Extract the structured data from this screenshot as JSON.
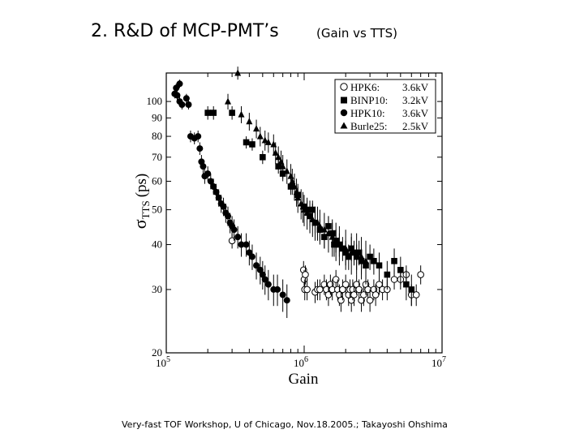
{
  "slide": {
    "title": "2. R&D of MCP-PMT’s",
    "subtitle": "(Gain vs TTS)",
    "footer": "Very-fast TOF Workshop,  U of Chicago,    Nov.18.2005.;  Takayoshi Ohshima"
  },
  "chart_data": {
    "type": "scatter",
    "title": "",
    "xlabel": "Gain",
    "ylabel_symbol": "σ",
    "ylabel_sub": "TTS",
    "ylabel_unit": "(ps)",
    "xscale": "log",
    "yscale": "log",
    "xlim": [
      100000,
      10000000
    ],
    "ylim": [
      20,
      120
    ],
    "x_ticks": [
      {
        "base": "10",
        "exp": "5",
        "value": 100000
      },
      {
        "base": "10",
        "exp": "6",
        "value": 1000000
      },
      {
        "base": "10",
        "exp": "7",
        "value": 10000000
      }
    ],
    "y_ticks": [
      {
        "label": "20",
        "value": 20
      },
      {
        "label": "30",
        "value": 30
      },
      {
        "label": "40",
        "value": 40
      },
      {
        "label": "50",
        "value": 50
      },
      {
        "label": "60",
        "value": 60
      },
      {
        "label": "70",
        "value": 70
      },
      {
        "label": "80",
        "value": 80
      },
      {
        "label": "90",
        "value": 90
      },
      {
        "label": "100",
        "value": 100
      }
    ],
    "legend_position": "top-right",
    "series": [
      {
        "name": "HPK6:",
        "hv": "3.6kV",
        "marker": "open-circle",
        "points": [
          [
            300000,
            41,
            2
          ],
          [
            990000,
            34,
            2
          ],
          [
            1000000,
            32,
            2
          ],
          [
            1010000,
            30,
            2
          ],
          [
            1020000,
            33,
            2
          ],
          [
            1050000,
            30,
            2
          ],
          [
            1200000,
            29.5,
            2
          ],
          [
            1250000,
            30,
            2
          ],
          [
            1300000,
            30,
            2
          ],
          [
            1400000,
            31,
            2
          ],
          [
            1450000,
            30,
            2
          ],
          [
            1500000,
            29,
            2
          ],
          [
            1550000,
            31,
            2
          ],
          [
            1600000,
            30,
            2
          ],
          [
            1700000,
            32,
            2
          ],
          [
            1750000,
            30,
            2
          ],
          [
            1800000,
            29,
            2
          ],
          [
            1850000,
            28,
            2
          ],
          [
            1900000,
            30,
            2
          ],
          [
            2000000,
            31,
            2
          ],
          [
            2100000,
            29,
            2
          ],
          [
            2150000,
            30,
            2
          ],
          [
            2200000,
            28,
            2
          ],
          [
            2250000,
            30,
            2
          ],
          [
            2300000,
            29,
            2
          ],
          [
            2400000,
            31,
            2
          ],
          [
            2500000,
            30,
            2
          ],
          [
            2600000,
            28,
            2
          ],
          [
            2700000,
            29,
            2
          ],
          [
            2800000,
            31,
            2
          ],
          [
            2900000,
            30,
            2
          ],
          [
            3000000,
            28,
            2
          ],
          [
            3200000,
            30,
            2
          ],
          [
            3300000,
            29,
            2
          ],
          [
            3500000,
            31,
            2
          ],
          [
            3700000,
            30,
            2
          ],
          [
            4000000,
            30,
            2
          ],
          [
            4500000,
            32,
            2
          ],
          [
            5000000,
            32,
            2
          ],
          [
            5500000,
            33,
            2
          ],
          [
            6000000,
            29,
            2
          ],
          [
            6500000,
            29,
            2
          ],
          [
            7000000,
            33,
            2
          ]
        ]
      },
      {
        "name": "BINP10:",
        "hv": "3.2kV",
        "marker": "filled-square",
        "points": [
          [
            200000,
            93,
            4
          ],
          [
            220000,
            93,
            4
          ],
          [
            300000,
            93,
            4
          ],
          [
            380000,
            77,
            3
          ],
          [
            420000,
            76,
            3
          ],
          [
            500000,
            70,
            3
          ],
          [
            650000,
            66,
            3
          ],
          [
            700000,
            63,
            3
          ],
          [
            800000,
            58,
            3
          ],
          [
            900000,
            55,
            3
          ],
          [
            1000000,
            51,
            3
          ],
          [
            1050000,
            50,
            3
          ],
          [
            1100000,
            48,
            3
          ],
          [
            1150000,
            50,
            3
          ],
          [
            1200000,
            46,
            3
          ],
          [
            1300000,
            44,
            3
          ],
          [
            1400000,
            42,
            3
          ],
          [
            1500000,
            45,
            3
          ],
          [
            1600000,
            43,
            3
          ],
          [
            1650000,
            40,
            3
          ],
          [
            1700000,
            41,
            3
          ],
          [
            1800000,
            40,
            3
          ],
          [
            1900000,
            39,
            3
          ],
          [
            2000000,
            38,
            3
          ],
          [
            2100000,
            37,
            3
          ],
          [
            2200000,
            39,
            3
          ],
          [
            2300000,
            38,
            3
          ],
          [
            2400000,
            37,
            3
          ],
          [
            2500000,
            38,
            3
          ],
          [
            2600000,
            36,
            3
          ],
          [
            2800000,
            35,
            3
          ],
          [
            3000000,
            37,
            3
          ],
          [
            3200000,
            36,
            3
          ],
          [
            3500000,
            35,
            3
          ],
          [
            4000000,
            33,
            3
          ],
          [
            4500000,
            36,
            3
          ],
          [
            5000000,
            34,
            3
          ],
          [
            5500000,
            31,
            3
          ],
          [
            6000000,
            30,
            3
          ]
        ]
      },
      {
        "name": "HPK10:",
        "hv": "3.6kV",
        "marker": "filled-circle",
        "points": [
          [
            115000,
            105,
            3
          ],
          [
            120000,
            104,
            3
          ],
          [
            125000,
            100,
            3
          ],
          [
            130000,
            98,
            3
          ],
          [
            118000,
            109,
            3
          ],
          [
            125000,
            112,
            3
          ],
          [
            140000,
            102,
            3
          ],
          [
            145000,
            98,
            3
          ],
          [
            150000,
            80,
            3
          ],
          [
            160000,
            79,
            3
          ],
          [
            170000,
            80,
            3
          ],
          [
            175000,
            74,
            3
          ],
          [
            180000,
            68,
            3
          ],
          [
            185000,
            66,
            3
          ],
          [
            190000,
            62,
            3
          ],
          [
            200000,
            63,
            3
          ],
          [
            210000,
            60,
            3
          ],
          [
            220000,
            58,
            3
          ],
          [
            230000,
            56,
            3
          ],
          [
            240000,
            54,
            3
          ],
          [
            250000,
            52,
            3
          ],
          [
            260000,
            51,
            3
          ],
          [
            270000,
            49,
            3
          ],
          [
            280000,
            48,
            3
          ],
          [
            290000,
            46,
            3
          ],
          [
            300000,
            45,
            3
          ],
          [
            310000,
            44,
            3
          ],
          [
            330000,
            42,
            3
          ],
          [
            350000,
            40,
            3
          ],
          [
            380000,
            40,
            3
          ],
          [
            400000,
            38,
            3
          ],
          [
            420000,
            37,
            3
          ],
          [
            450000,
            35,
            3
          ],
          [
            480000,
            34,
            3
          ],
          [
            500000,
            33,
            3
          ],
          [
            520000,
            32,
            3
          ],
          [
            550000,
            31,
            3
          ],
          [
            600000,
            30,
            3
          ],
          [
            640000,
            30,
            3
          ],
          [
            700000,
            29,
            3
          ],
          [
            750000,
            28,
            3
          ]
        ]
      },
      {
        "name": "Burle25:",
        "hv": "2.5kV",
        "marker": "filled-triangle",
        "points": [
          [
            330000,
            120,
            5
          ],
          [
            280000,
            100,
            5
          ],
          [
            350000,
            92,
            5
          ],
          [
            400000,
            88,
            5
          ],
          [
            450000,
            84,
            5
          ],
          [
            480000,
            80,
            5
          ],
          [
            520000,
            78,
            5
          ],
          [
            550000,
            77,
            5
          ],
          [
            600000,
            76,
            5
          ],
          [
            620000,
            72,
            5
          ],
          [
            650000,
            70,
            5
          ],
          [
            680000,
            68,
            5
          ],
          [
            700000,
            66,
            5
          ],
          [
            750000,
            64,
            5
          ],
          [
            800000,
            62,
            5
          ],
          [
            820000,
            60,
            5
          ],
          [
            850000,
            58,
            5
          ],
          [
            880000,
            56,
            5
          ],
          [
            900000,
            54,
            5
          ],
          [
            950000,
            52,
            5
          ],
          [
            980000,
            51,
            5
          ],
          [
            1000000,
            50,
            5
          ],
          [
            1050000,
            49,
            5
          ],
          [
            1100000,
            48,
            5
          ],
          [
            1150000,
            47,
            5
          ],
          [
            1200000,
            46,
            5
          ],
          [
            1250000,
            46,
            5
          ],
          [
            1300000,
            45,
            5
          ],
          [
            1400000,
            44,
            5
          ],
          [
            1500000,
            43,
            5
          ],
          [
            1600000,
            42,
            5
          ],
          [
            1700000,
            41,
            5
          ],
          [
            1800000,
            40,
            5
          ],
          [
            2000000,
            39,
            5
          ],
          [
            2200000,
            38,
            5
          ],
          [
            2400000,
            38,
            5
          ],
          [
            2600000,
            37,
            5
          ],
          [
            2800000,
            36,
            5
          ]
        ]
      }
    ]
  }
}
